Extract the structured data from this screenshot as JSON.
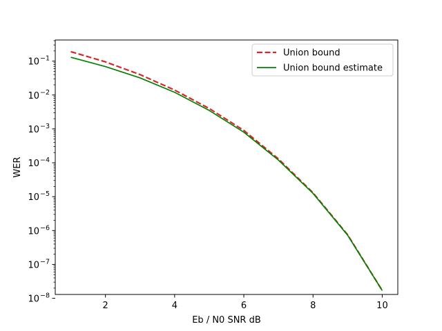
{
  "chart_data": {
    "type": "line",
    "title": "",
    "xlabel": "Eb / N0 SNR dB",
    "ylabel": "WER",
    "x_scale": "linear",
    "y_scale": "log",
    "xlim": [
      0.55,
      10.45
    ],
    "ylim": [
      1.3e-08,
      0.42
    ],
    "x_ticks": [
      2,
      4,
      6,
      8,
      10
    ],
    "y_tick_exponents": [
      -1,
      -2,
      -3,
      -4,
      -5,
      -6,
      -7,
      -8
    ],
    "y_tick_base": "10",
    "grid": false,
    "legend_position": "top-right",
    "series": [
      {
        "name": "Union bound",
        "color": "#d62728",
        "style": "dashed",
        "x": [
          1,
          2,
          3,
          4,
          5,
          6,
          7,
          8,
          9,
          10
        ],
        "y": [
          0.19,
          0.095,
          0.04,
          0.014,
          0.004,
          0.0009,
          0.00013,
          1.3e-05,
          7.5e-07,
          1.7e-08
        ]
      },
      {
        "name": "Union bound estimate",
        "color": "#008000",
        "style": "solid",
        "x": [
          1,
          2,
          3,
          4,
          5,
          6,
          7,
          8,
          9,
          10
        ],
        "y": [
          0.13,
          0.069,
          0.032,
          0.012,
          0.0035,
          0.0008,
          0.00012,
          1.25e-05,
          7.3e-07,
          1.7e-08
        ]
      }
    ]
  }
}
